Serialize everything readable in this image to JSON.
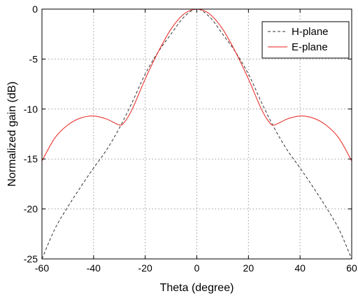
{
  "chart_data": {
    "type": "line",
    "title": "",
    "xlabel": "Theta (degree)",
    "ylabel": "Normalized gain (dB)",
    "xlim": [
      -60,
      60
    ],
    "ylim": [
      -25,
      0
    ],
    "xticks": [
      -60,
      -40,
      -20,
      0,
      20,
      40,
      60
    ],
    "yticks": [
      0,
      -5,
      -10,
      -15,
      -20,
      -25
    ],
    "xtick_labels": [
      "-60",
      "-40",
      "-20",
      "0",
      "20",
      "40",
      "60"
    ],
    "ytick_labels": [
      "0",
      "-5",
      "-10",
      "-15",
      "-20",
      "-25"
    ],
    "grid": true,
    "grid_style": "dotted",
    "legend_position": "top-right",
    "series": [
      {
        "name": "H-plane",
        "color": "#333333",
        "line_style": "dashed",
        "x": [
          -60,
          -55,
          -50,
          -45,
          -40,
          -35,
          -30,
          -25,
          -20,
          -15,
          -10,
          -5,
          0,
          5,
          10,
          15,
          20,
          25,
          30,
          35,
          40,
          45,
          50,
          55,
          60
        ],
        "y": [
          -25.0,
          -22.0,
          -19.8,
          -17.8,
          -15.9,
          -14.1,
          -11.9,
          -9.3,
          -6.5,
          -4.3,
          -2.5,
          -0.8,
          0,
          -0.8,
          -2.5,
          -4.3,
          -6.5,
          -9.3,
          -11.9,
          -14.1,
          -15.9,
          -17.8,
          -19.8,
          -22.0,
          -25.0
        ]
      },
      {
        "name": "E-plane",
        "color": "#e8221c",
        "line_style": "solid",
        "x": [
          -60,
          -55,
          -50,
          -45,
          -40,
          -35,
          -30,
          -28,
          -25,
          -20,
          -15,
          -10,
          -5,
          0,
          5,
          10,
          15,
          20,
          25,
          28,
          30,
          35,
          40,
          45,
          50,
          55,
          60
        ],
        "y": [
          -15.2,
          -12.9,
          -11.6,
          -10.9,
          -10.7,
          -11.0,
          -11.6,
          -11.3,
          -10.0,
          -7.0,
          -4.3,
          -2.0,
          -0.5,
          0,
          -0.5,
          -2.0,
          -4.3,
          -7.0,
          -10.0,
          -11.3,
          -11.6,
          -11.0,
          -10.7,
          -10.9,
          -11.6,
          -12.9,
          -15.2
        ]
      }
    ]
  }
}
